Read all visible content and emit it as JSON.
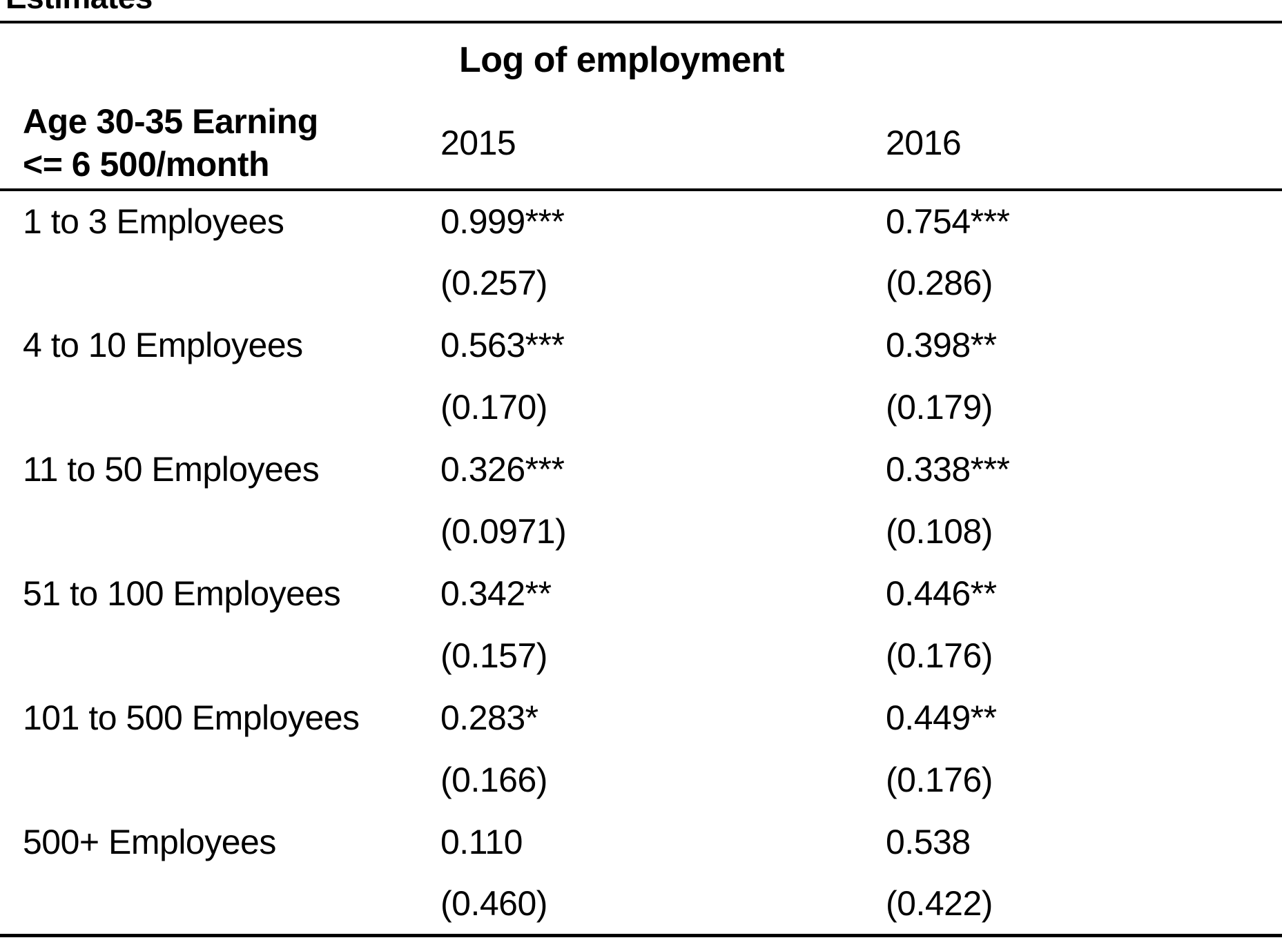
{
  "page": {
    "clipped_title": "Estimates"
  },
  "table": {
    "group_header": "Log of employment",
    "row_header_line1": "Age 30-35 Earning",
    "row_header_line2": "<= 6 500/month",
    "columns": [
      "2015",
      "2016"
    ],
    "rows": [
      {
        "label": "1 to 3 Employees",
        "coef_2015": "0.999***",
        "se_2015": "(0.257)",
        "coef_2016": "0.754***",
        "se_2016": "(0.286)"
      },
      {
        "label": "4 to 10 Employees",
        "coef_2015": "0.563***",
        "se_2015": "(0.170)",
        "coef_2016": "0.398**",
        "se_2016": "(0.179)"
      },
      {
        "label": "11 to 50 Employees",
        "coef_2015": "0.326***",
        "se_2015": "(0.0971)",
        "coef_2016": "0.338***",
        "se_2016": "(0.108)"
      },
      {
        "label": "51 to 100 Employees",
        "coef_2015": "0.342**",
        "se_2015": "(0.157)",
        "coef_2016": "0.446**",
        "se_2016": "(0.176)"
      },
      {
        "label": "101 to 500 Employees",
        "coef_2015": "0.283*",
        "se_2015": "(0.166)",
        "coef_2016": "0.449**",
        "se_2016": "(0.176)"
      },
      {
        "label": "500+ Employees",
        "coef_2015": "0.110",
        "se_2015": "(0.460)",
        "coef_2016": "0.538",
        "se_2016": "(0.422)"
      }
    ]
  }
}
